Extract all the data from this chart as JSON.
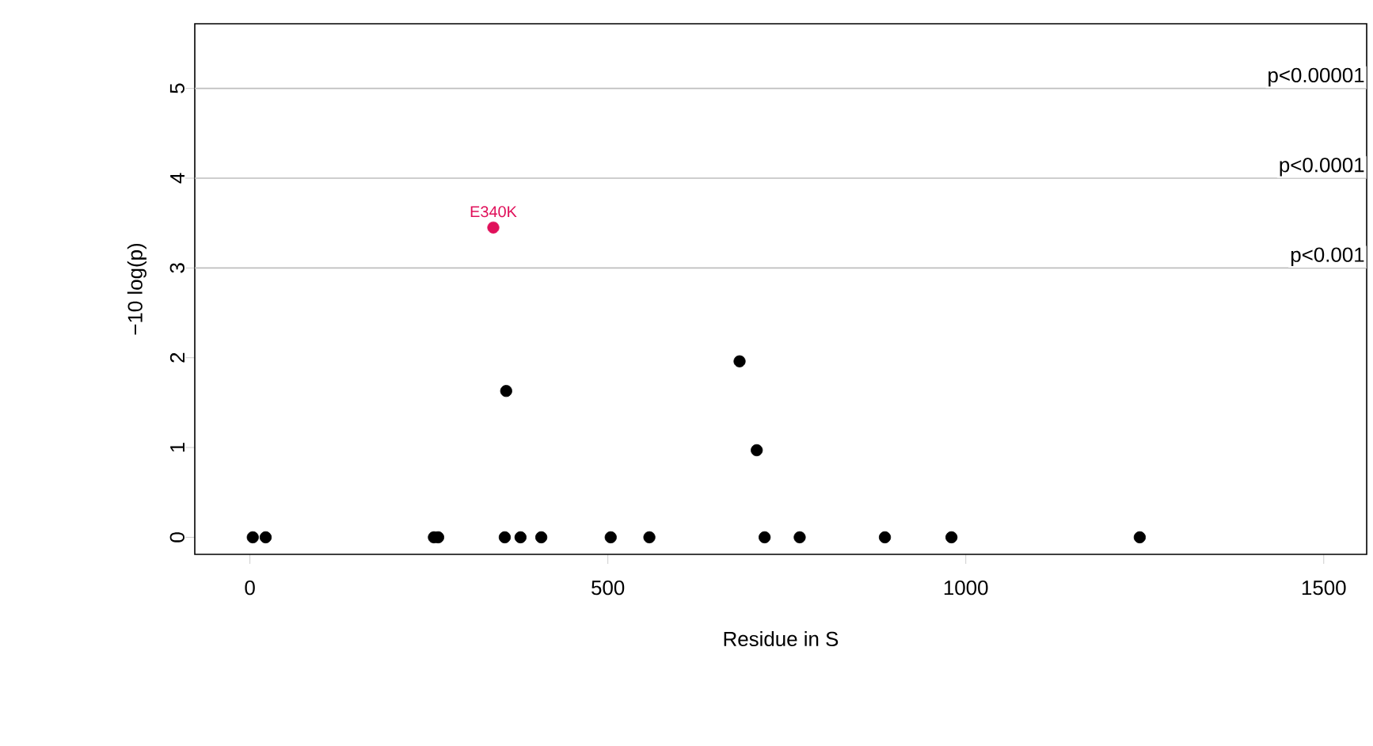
{
  "chart_data": {
    "type": "scatter",
    "xlabel": "Residue in S",
    "ylabel": "−10 log(p)",
    "xlim": [
      -77,
      1560
    ],
    "ylim": [
      -0.19,
      5.72
    ],
    "xticks": [
      0,
      500,
      1000,
      1500
    ],
    "yticks": [
      0,
      1,
      2,
      3,
      4,
      5
    ],
    "marker": "circle",
    "series": [
      {
        "color": "#000000",
        "x": [
          4,
          22,
          257,
          263,
          356,
          378,
          407,
          504,
          558,
          719,
          768,
          887,
          980,
          1243,
          358,
          684,
          708
        ],
        "values": [
          0,
          0,
          0,
          0,
          0,
          0,
          0,
          0,
          0,
          0,
          0,
          0,
          0,
          0,
          1.63,
          1.96,
          0.97
        ]
      },
      {
        "color": "#e0105a",
        "x": [
          340
        ],
        "values": [
          3.45
        ]
      }
    ],
    "annotations": [
      {
        "text": "E340K",
        "x": 340,
        "y": 3.45
      }
    ],
    "ref_lines": [
      {
        "axis": "y",
        "value": 3,
        "label": "p<0.001",
        "color": "#bebebe"
      },
      {
        "axis": "y",
        "value": 4,
        "label": "p<0.0001",
        "color": "#bebebe"
      },
      {
        "axis": "y",
        "value": 5,
        "label": "p<0.00001",
        "color": "#bebebe"
      }
    ]
  }
}
